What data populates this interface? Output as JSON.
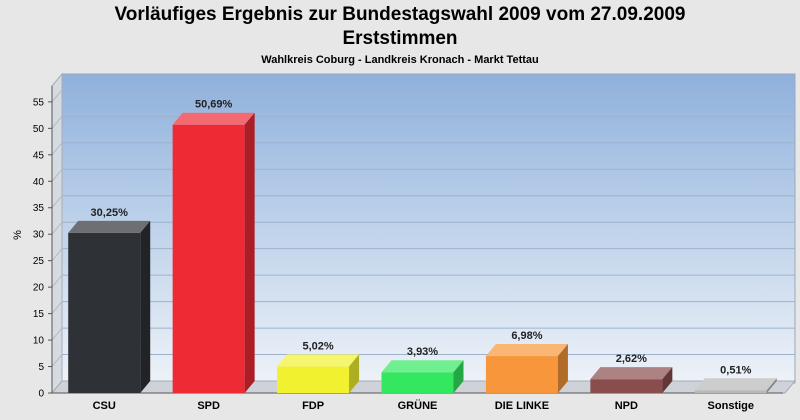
{
  "chart_data": {
    "type": "bar",
    "title": "Vorläufiges Ergebnis zur Bundestagswahl 2009 vom 27.09.2009",
    "title_line2": "Erststimmen",
    "subtitle": "Wahlkreis Coburg - Landkreis Kronach - Markt Tettau",
    "ylabel": "%",
    "ylim": [
      0,
      58
    ],
    "yticks": [
      0,
      5,
      10,
      15,
      20,
      25,
      30,
      35,
      40,
      45,
      50,
      55
    ],
    "categories": [
      "CSU",
      "SPD",
      "FDP",
      "GRÜNE",
      "DIE LINKE",
      "NPD",
      "Sonstige"
    ],
    "values": [
      30.25,
      50.69,
      5.02,
      3.93,
      6.98,
      2.62,
      0.51
    ],
    "value_labels": [
      "30,25%",
      "50,69%",
      "5,02%",
      "3,93%",
      "6,98%",
      "2,62%",
      "0,51%"
    ],
    "colors": [
      "#2e3136",
      "#ee2a35",
      "#f1f130",
      "#33e860",
      "#f7963a",
      "#8a4d4d",
      "#b8b8b8"
    ],
    "grid": true
  }
}
